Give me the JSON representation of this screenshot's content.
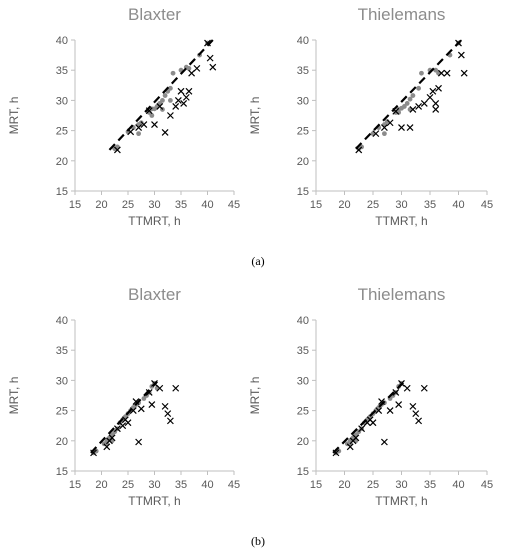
{
  "figure": {
    "captions": [
      "(a)",
      "(b)"
    ],
    "colors": {
      "dots": "#8c8c8c",
      "crosses": "#000000",
      "fit_line": "#000000",
      "axes": "#bfbfbf"
    }
  },
  "chart_data": [
    {
      "type": "scatter",
      "title": "Blaxter",
      "xlabel": "TTMRT, h",
      "ylabel": "MRT, h",
      "xlim": [
        15,
        45
      ],
      "ylim": [
        15,
        40
      ],
      "xticks": [
        15,
        20,
        25,
        30,
        35,
        40,
        45
      ],
      "yticks": [
        15,
        20,
        25,
        30,
        35,
        40
      ],
      "grid": false,
      "series": [
        {
          "marker": "dot",
          "points": [
            [
              22.5,
              22
            ],
            [
              23,
              22.3
            ],
            [
              25,
              24.8
            ],
            [
              26,
              25.5
            ],
            [
              27,
              26
            ],
            [
              27.5,
              26.3
            ],
            [
              29,
              28
            ],
            [
              29.5,
              28.6
            ],
            [
              30,
              28.6
            ],
            [
              30.5,
              29
            ],
            [
              31,
              29.5
            ],
            [
              31.5,
              30
            ],
            [
              32,
              30.8
            ],
            [
              32.5,
              31.5
            ],
            [
              33,
              32
            ],
            [
              33.5,
              34.5
            ],
            [
              35,
              35
            ],
            [
              36,
              35.5
            ],
            [
              36.5,
              35.3
            ],
            [
              38.5,
              37.5
            ],
            [
              40,
              39.5
            ],
            [
              27,
              24.5
            ],
            [
              29.5,
              27.5
            ],
            [
              31.5,
              28.5
            ],
            [
              33,
              30
            ]
          ]
        },
        {
          "marker": "cross",
          "points": [
            [
              23,
              21.8
            ],
            [
              25.5,
              24.8
            ],
            [
              27,
              25.5
            ],
            [
              28,
              26
            ],
            [
              29,
              28.3
            ],
            [
              30,
              26
            ],
            [
              31,
              29
            ],
            [
              32,
              24.7
            ],
            [
              33,
              27.5
            ],
            [
              34,
              29
            ],
            [
              34.5,
              30
            ],
            [
              35,
              31.5
            ],
            [
              35.5,
              29.5
            ],
            [
              36,
              30.5
            ],
            [
              36.5,
              31.5
            ],
            [
              37,
              34.5
            ],
            [
              38,
              35.3
            ],
            [
              40,
              39.5
            ],
            [
              40.5,
              37
            ],
            [
              41,
              35.5
            ]
          ]
        },
        {
          "marker": "dashed-line",
          "points": [
            [
              21.5,
              21.8
            ],
            [
              41,
              40
            ]
          ]
        }
      ]
    },
    {
      "type": "scatter",
      "title": "Thielemans",
      "xlabel": "TTMRT, h",
      "ylabel": "MRT, h",
      "xlim": [
        15,
        45
      ],
      "ylim": [
        15,
        40
      ],
      "xticks": [
        15,
        20,
        25,
        30,
        35,
        40,
        45
      ],
      "yticks": [
        15,
        20,
        25,
        30,
        35,
        40
      ],
      "grid": false,
      "series": [
        {
          "marker": "dot",
          "points": [
            [
              22.5,
              22
            ],
            [
              23,
              22.3
            ],
            [
              25,
              24.5
            ],
            [
              26,
              25.5
            ],
            [
              27,
              26
            ],
            [
              27.5,
              26.5
            ],
            [
              29,
              28
            ],
            [
              29.5,
              28.5
            ],
            [
              30,
              28.7
            ],
            [
              30.5,
              29
            ],
            [
              31,
              29.5
            ],
            [
              31.5,
              30.2
            ],
            [
              32,
              30.8
            ],
            [
              33,
              32
            ],
            [
              33.5,
              34.5
            ],
            [
              35,
              35
            ],
            [
              36,
              35
            ],
            [
              36.5,
              34.5
            ],
            [
              38.5,
              37.5
            ],
            [
              40,
              39.5
            ],
            [
              27,
              24.5
            ],
            [
              29.5,
              28
            ],
            [
              31.5,
              28.5
            ]
          ]
        },
        {
          "marker": "cross",
          "points": [
            [
              22.5,
              21.8
            ],
            [
              25.5,
              24.5
            ],
            [
              27,
              25.5
            ],
            [
              28,
              26.3
            ],
            [
              29,
              28.2
            ],
            [
              30,
              25.5
            ],
            [
              31.5,
              25.5
            ],
            [
              32,
              28.5
            ],
            [
              33,
              29
            ],
            [
              34,
              29.5
            ],
            [
              35,
              30.5
            ],
            [
              35.5,
              31.5
            ],
            [
              36,
              28.5
            ],
            [
              36,
              29.5
            ],
            [
              36.5,
              32
            ],
            [
              37,
              34.5
            ],
            [
              38,
              34.5
            ],
            [
              40,
              39.5
            ],
            [
              40.5,
              37.5
            ],
            [
              41,
              34.5
            ]
          ]
        },
        {
          "marker": "dashed-line",
          "points": [
            [
              22,
              22
            ],
            [
              40.5,
              40
            ]
          ]
        }
      ]
    },
    {
      "type": "scatter",
      "title": "Blaxter",
      "xlabel": "TTMRT, h",
      "ylabel": "MRT, h",
      "xlim": [
        15,
        45
      ],
      "ylim": [
        15,
        40
      ],
      "xticks": [
        15,
        20,
        25,
        30,
        35,
        40,
        45
      ],
      "yticks": [
        15,
        20,
        25,
        30,
        35,
        40
      ],
      "grid": false,
      "series": [
        {
          "marker": "dot",
          "points": [
            [
              18.5,
              18
            ],
            [
              19,
              18.3
            ],
            [
              20.5,
              19.5
            ],
            [
              21,
              20
            ],
            [
              21.5,
              20.5
            ],
            [
              22,
              21
            ],
            [
              22.5,
              21.5
            ],
            [
              23,
              22
            ],
            [
              23.5,
              23
            ],
            [
              24,
              23.5
            ],
            [
              24.5,
              24
            ],
            [
              25,
              24.5
            ],
            [
              25.5,
              25
            ],
            [
              26,
              25.5
            ],
            [
              26.5,
              26
            ],
            [
              27,
              26.3
            ],
            [
              28,
              27
            ],
            [
              28.5,
              27.5
            ],
            [
              29,
              28
            ],
            [
              29.5,
              29
            ],
            [
              30,
              29.5
            ],
            [
              30.5,
              28.7
            ],
            [
              21,
              19.5
            ],
            [
              22,
              20
            ]
          ]
        },
        {
          "marker": "cross",
          "points": [
            [
              18.5,
              18
            ],
            [
              21,
              19
            ],
            [
              21.5,
              20
            ],
            [
              22,
              20.5
            ],
            [
              23,
              22
            ],
            [
              24,
              22.5
            ],
            [
              24.5,
              23.5
            ],
            [
              25,
              23
            ],
            [
              26,
              25
            ],
            [
              26.5,
              26.5
            ],
            [
              27,
              19.8
            ],
            [
              27.5,
              25.3
            ],
            [
              29,
              28
            ],
            [
              29.5,
              26
            ],
            [
              30,
              29.5
            ],
            [
              31,
              28.7
            ],
            [
              32,
              25.7
            ],
            [
              32.5,
              24.5
            ],
            [
              33,
              23.3
            ],
            [
              34,
              28.7
            ]
          ]
        },
        {
          "marker": "dashed-line",
          "points": [
            [
              18,
              18
            ],
            [
              30.5,
              29.8
            ]
          ]
        }
      ]
    },
    {
      "type": "scatter",
      "title": "Thielemans",
      "xlabel": "TTMRT, h",
      "ylabel": "MRT, h",
      "xlim": [
        15,
        45
      ],
      "ylim": [
        15,
        40
      ],
      "xticks": [
        15,
        20,
        25,
        30,
        35,
        40,
        45
      ],
      "yticks": [
        15,
        20,
        25,
        30,
        35,
        40
      ],
      "grid": false,
      "series": [
        {
          "marker": "dot",
          "points": [
            [
              18.5,
              18
            ],
            [
              19,
              18.3
            ],
            [
              20.5,
              19.5
            ],
            [
              21,
              20
            ],
            [
              21.5,
              20.5
            ],
            [
              22,
              21
            ],
            [
              22.5,
              21.5
            ],
            [
              23,
              22
            ],
            [
              23.5,
              23
            ],
            [
              24,
              23.5
            ],
            [
              24.5,
              24
            ],
            [
              25,
              24.5
            ],
            [
              25.5,
              25
            ],
            [
              26,
              25.5
            ],
            [
              26.5,
              26
            ],
            [
              27,
              26.3
            ],
            [
              28,
              27
            ],
            [
              28.5,
              27.5
            ],
            [
              29,
              28
            ],
            [
              29.5,
              29
            ],
            [
              30,
              29.5
            ],
            [
              21,
              19.5
            ],
            [
              22,
              20
            ]
          ]
        },
        {
          "marker": "cross",
          "points": [
            [
              18.5,
              18
            ],
            [
              21,
              19
            ],
            [
              21.5,
              20
            ],
            [
              22,
              20.5
            ],
            [
              23,
              22
            ],
            [
              24,
              23
            ],
            [
              24.5,
              23.5
            ],
            [
              25,
              23
            ],
            [
              26,
              25
            ],
            [
              26.5,
              26.5
            ],
            [
              27,
              19.8
            ],
            [
              28,
              25
            ],
            [
              29,
              28
            ],
            [
              29.5,
              26
            ],
            [
              30,
              29.5
            ],
            [
              31,
              28.7
            ],
            [
              32,
              25.7
            ],
            [
              32.5,
              24.5
            ],
            [
              33,
              23.3
            ],
            [
              34,
              28.7
            ]
          ]
        },
        {
          "marker": "dashed-line",
          "points": [
            [
              18,
              18
            ],
            [
              30.5,
              29.8
            ]
          ]
        }
      ]
    }
  ]
}
